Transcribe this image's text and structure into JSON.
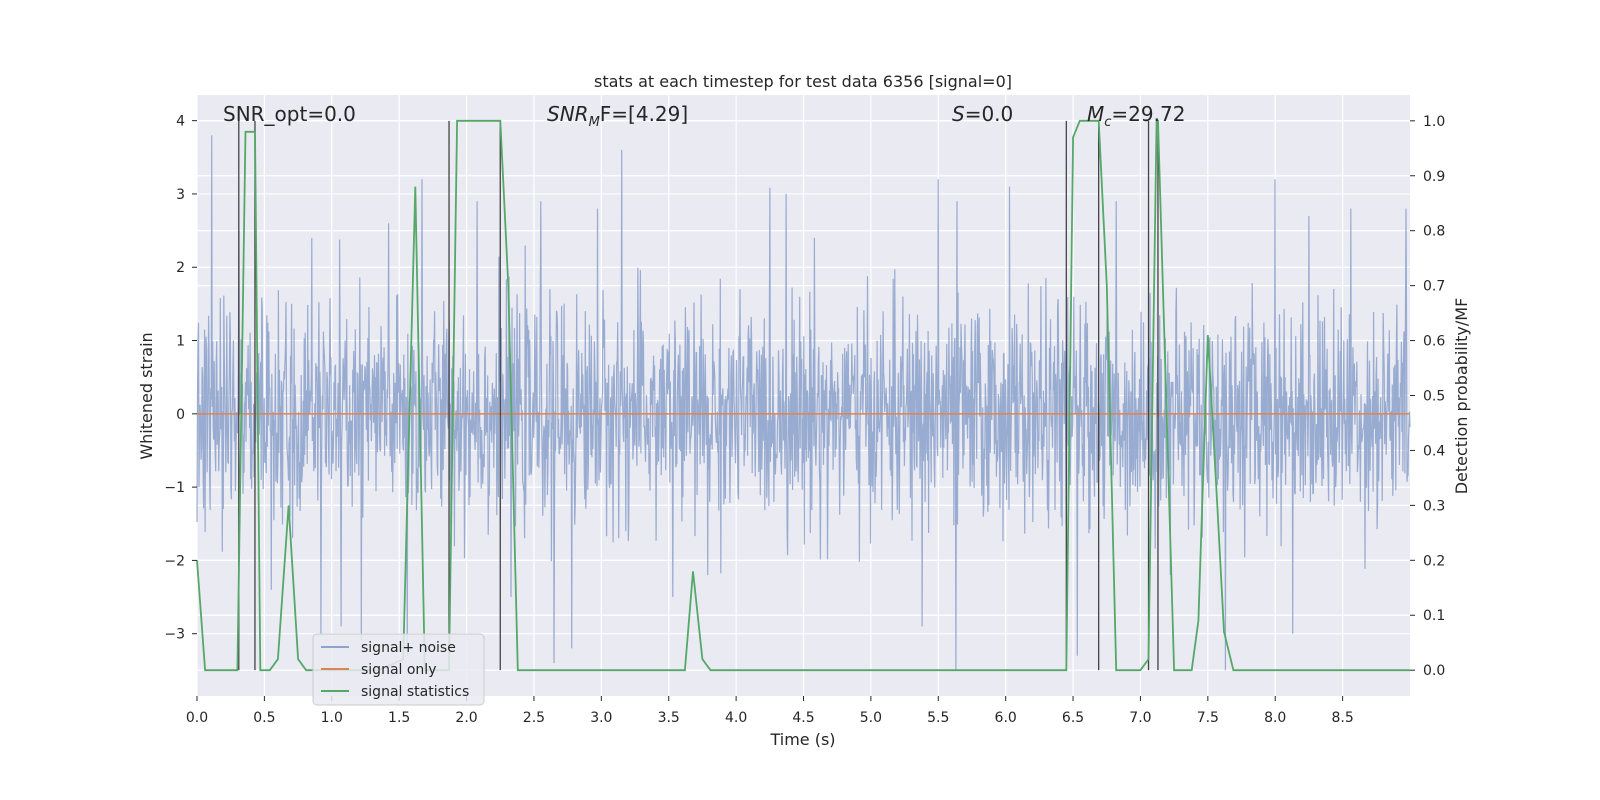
{
  "chart_data": {
    "type": "line",
    "title": "stats at each timestep for test data 6356 [signal=0]",
    "xlabel": "Time (s)",
    "ylabel": "Whitened strain",
    "y2label": "Detection probability/MF",
    "xlim": [
      0.0,
      9.0
    ],
    "ylim": [
      -3.85,
      4.35
    ],
    "y2lim": [
      -0.047,
      1.047
    ],
    "xticks": [
      0.0,
      0.5,
      1.0,
      1.5,
      2.0,
      2.5,
      3.0,
      3.5,
      4.0,
      4.5,
      5.0,
      5.5,
      6.0,
      6.5,
      7.0,
      7.5,
      8.0,
      8.5
    ],
    "yticks": [
      -3,
      -2,
      -1,
      0,
      1,
      2,
      3,
      4
    ],
    "y2ticks": [
      0.0,
      0.1,
      0.2,
      0.3,
      0.4,
      0.5,
      0.6,
      0.7,
      0.8,
      0.9,
      1.0
    ],
    "xtick_labels": [
      "0.0",
      "0.5",
      "1.0",
      "1.5",
      "2.0",
      "2.5",
      "3.0",
      "3.5",
      "4.0",
      "4.5",
      "5.0",
      "5.5",
      "6.0",
      "6.5",
      "7.0",
      "7.5",
      "8.0",
      "8.5"
    ],
    "ytick_labels": [
      "−3",
      "−2",
      "−1",
      "0",
      "1",
      "2",
      "3",
      "4"
    ],
    "y2tick_labels": [
      "0.0",
      "0.1",
      "0.2",
      "0.3",
      "0.4",
      "0.5",
      "0.6",
      "0.7",
      "0.8",
      "0.9",
      "1.0"
    ],
    "annotations": {
      "snr_opt": "SNR_opt=0.0",
      "snr_mf_main": "SNR",
      "snr_mf_sub": "M",
      "snr_mf_rest": "F=[4.29]",
      "s_main": "S",
      "s_rest": "=0.0",
      "mc_main": "M",
      "mc_sub": "c",
      "mc_rest": "=29.72"
    },
    "series": [
      {
        "name": "signal+ noise",
        "color": "#8fa4cc",
        "style": "noise",
        "sigma": 0.72,
        "peaks": [
          [
            0.11,
            3.8
          ],
          [
            0.31,
            2.5
          ],
          [
            0.55,
            -2.4
          ],
          [
            0.85,
            2.4
          ],
          [
            0.92,
            -3.0
          ],
          [
            1.07,
            -2.9
          ],
          [
            1.22,
            -3.1
          ],
          [
            1.42,
            2.6
          ],
          [
            1.56,
            -3.3
          ],
          [
            1.67,
            3.2
          ],
          [
            2.08,
            2.9
          ],
          [
            2.33,
            -2.5
          ],
          [
            2.55,
            2.9
          ],
          [
            2.65,
            -3.4
          ],
          [
            2.78,
            -3.2
          ],
          [
            2.97,
            2.8
          ],
          [
            3.15,
            3.6
          ],
          [
            3.53,
            -2.5
          ],
          [
            3.79,
            -2.2
          ],
          [
            4.37,
            3.0
          ],
          [
            4.58,
            2.4
          ],
          [
            5.38,
            -2.9
          ],
          [
            5.5,
            3.2
          ],
          [
            5.63,
            -3.5
          ],
          [
            5.64,
            2.9
          ],
          [
            6.03,
            3.1
          ],
          [
            6.53,
            -3.3
          ],
          [
            6.82,
            2.9
          ],
          [
            7.22,
            -2.2
          ],
          [
            7.63,
            -3.5
          ],
          [
            8.0,
            3.2
          ],
          [
            8.13,
            -3.0
          ],
          [
            8.25,
            2.7
          ],
          [
            8.56,
            2.8
          ],
          [
            8.97,
            2.8
          ]
        ]
      },
      {
        "name": "signal only",
        "color": "#dd8452",
        "style": "flat",
        "x": [
          0.0,
          9.0
        ],
        "y": [
          0.0,
          0.0
        ]
      },
      {
        "name": "signal statistics",
        "color": "#55a868",
        "axis": "right",
        "x": [
          0.0,
          0.06,
          0.13,
          0.2,
          0.3,
          0.36,
          0.43,
          0.47,
          0.54,
          0.6,
          0.68,
          0.75,
          0.81,
          0.88,
          1.0,
          1.2,
          1.35,
          1.53,
          1.62,
          1.69,
          1.75,
          1.82,
          1.87,
          1.93,
          2.25,
          2.31,
          2.38,
          2.5,
          3.0,
          3.5,
          3.62,
          3.68,
          3.75,
          3.81,
          4.0,
          5.0,
          6.0,
          6.45,
          6.5,
          6.55,
          6.62,
          6.69,
          6.75,
          6.82,
          6.88,
          7.0,
          7.06,
          7.12,
          7.13,
          7.19,
          7.25,
          7.38,
          7.43,
          7.5,
          7.57,
          7.62,
          7.69,
          8.0,
          9.0
        ],
        "y": [
          0.2,
          0.0,
          0.0,
          0.0,
          0.0,
          0.98,
          0.98,
          0.0,
          0.0,
          0.02,
          0.3,
          0.02,
          0.0,
          0.0,
          0.0,
          0.0,
          0.0,
          0.02,
          0.88,
          0.0,
          0.0,
          0.0,
          0.0,
          1.0,
          1.0,
          0.7,
          0.0,
          0.0,
          0.0,
          0.0,
          0.0,
          0.18,
          0.02,
          0.0,
          0.0,
          0.0,
          0.0,
          0.0,
          0.97,
          1.0,
          1.0,
          1.0,
          0.7,
          0.0,
          0.0,
          0.0,
          0.02,
          1.0,
          1.0,
          0.5,
          0.0,
          0.0,
          0.09,
          0.61,
          0.3,
          0.07,
          0.0,
          0.0,
          0.0
        ]
      }
    ],
    "vlines": [
      0.31,
      0.43,
      1.87,
      2.25,
      6.45,
      6.69,
      7.06,
      7.13
    ],
    "legend_position": "lower-left"
  }
}
